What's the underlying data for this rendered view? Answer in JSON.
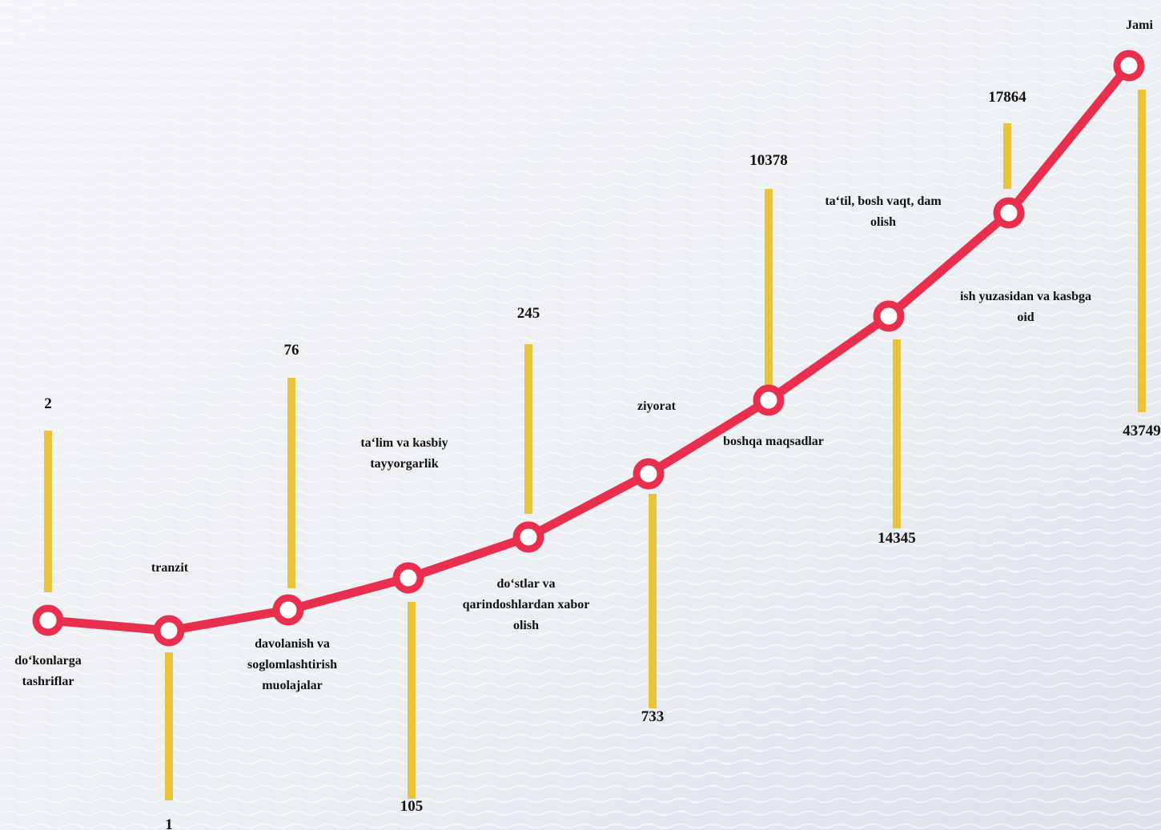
{
  "chart_data": {
    "type": "line",
    "title": "",
    "categories": [
      "do‘konlarga tashriflar",
      "tranzit",
      "davolanish va soglomlashtirish muolajalar",
      "ta‘lim va kasbiy tayyorgarlik",
      "do‘stlar va qarindoshlardan xabor olish",
      "ziyorat",
      "boshqa maqsadlar",
      "ish yuzasidan va kasbga oid",
      "ta‘til, bosh vaqt, dam olish",
      "Jami"
    ],
    "values": [
      2,
      1,
      76,
      105,
      245,
      733,
      10378,
      14345,
      17864,
      43749
    ],
    "value_labels": [
      "2",
      "1",
      "76",
      "105",
      "245",
      "733",
      "10378",
      "14345",
      "17864",
      "43749"
    ],
    "colors": {
      "line": "#e8304e",
      "stem": "#e8c43a",
      "marker_fill": "#ffffff"
    }
  }
}
